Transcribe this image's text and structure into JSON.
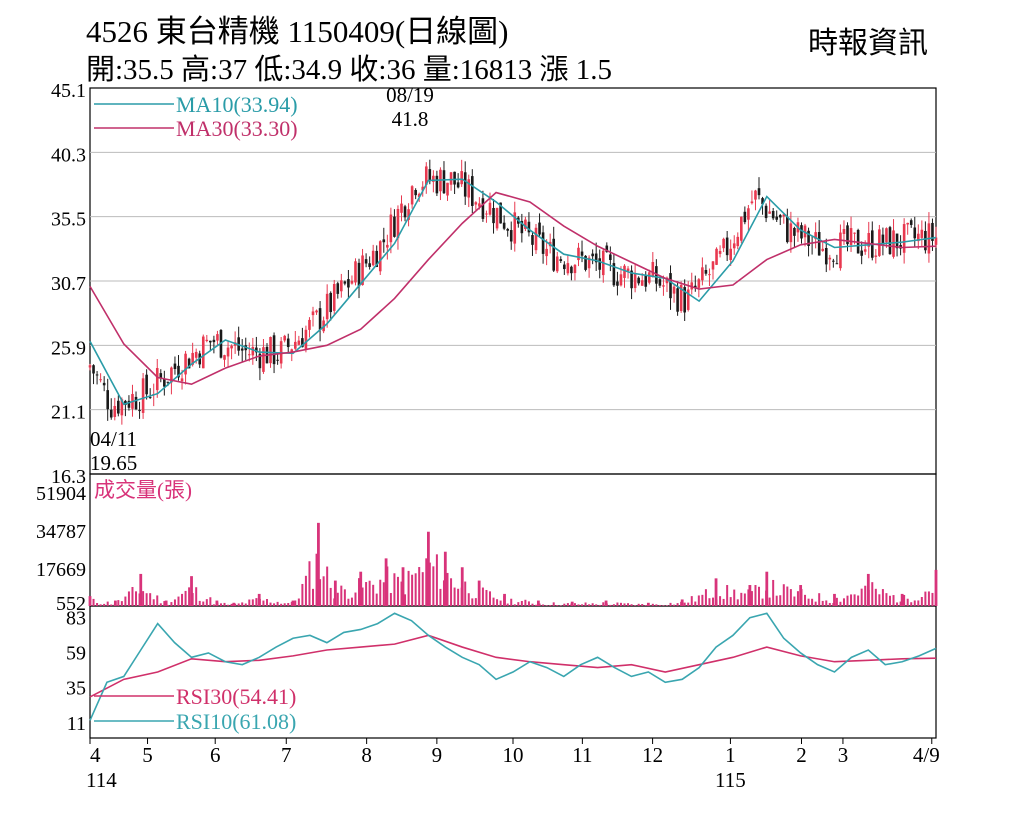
{
  "header": {
    "title": "4526  東台精機 1150409(日線圖)",
    "source": "時報資訊",
    "ohlc": "開:35.5 高:37 低:34.9 收:36 量:16813 漲 1.5"
  },
  "colors": {
    "up": "#e8384f",
    "down": "#1a1a1a",
    "ma10": "#2a9ca8",
    "ma30": "#c0306a",
    "volume": "#d8337a",
    "rsi30": "#d0306a",
    "rsi10": "#3aa6b0",
    "grid": "#bbbbbb"
  },
  "chart_data": [
    {
      "type": "line",
      "name": "price",
      "ylim": [
        16.3,
        45.1
      ],
      "yticks": [
        "45.1",
        "40.3",
        "35.5",
        "30.7",
        "25.9",
        "21.1",
        "16.3"
      ],
      "series": [
        {
          "name": "MA10(33.94)",
          "x": [
            0,
            0.04,
            0.08,
            0.12,
            0.16,
            0.2,
            0.24,
            0.28,
            0.32,
            0.36,
            0.4,
            0.44,
            0.48,
            0.52,
            0.56,
            0.6,
            0.64,
            0.68,
            0.72,
            0.76,
            0.8,
            0.84,
            0.88,
            0.92,
            0.96,
            1.0
          ],
          "values": [
            26.2,
            21.5,
            22.3,
            24.5,
            26.3,
            25.4,
            25.3,
            27.5,
            30.5,
            33.5,
            38.2,
            38.3,
            36.6,
            34.5,
            32.7,
            32.2,
            31.3,
            30.9,
            29.2,
            32.2,
            37.0,
            34.5,
            33.2,
            33.4,
            33.6,
            33.94
          ]
        },
        {
          "name": "MA30(33.30)",
          "x": [
            0,
            0.04,
            0.08,
            0.12,
            0.16,
            0.2,
            0.24,
            0.28,
            0.32,
            0.36,
            0.4,
            0.44,
            0.48,
            0.52,
            0.56,
            0.6,
            0.64,
            0.68,
            0.72,
            0.76,
            0.8,
            0.84,
            0.88,
            0.92,
            0.96,
            1.0
          ],
          "values": [
            30.3,
            26.0,
            23.5,
            23.0,
            24.2,
            25.1,
            25.4,
            25.9,
            27.1,
            29.4,
            32.3,
            35.0,
            37.3,
            36.6,
            34.8,
            33.3,
            32.1,
            30.9,
            30.1,
            30.4,
            32.3,
            33.4,
            33.8,
            33.5,
            33.2,
            33.3
          ]
        }
      ],
      "annotations": [
        {
          "date": "08/19",
          "value": "41.8"
        },
        {
          "date": "04/11",
          "value": "19.65"
        }
      ]
    },
    {
      "type": "bar",
      "name": "volume",
      "title": "成交量(張)",
      "ylim": [
        552,
        60000
      ],
      "yticks": [
        "51904",
        "34787",
        "17669",
        "552"
      ],
      "x": [
        0.0,
        0.03,
        0.06,
        0.09,
        0.12,
        0.15,
        0.17,
        0.2,
        0.24,
        0.27,
        0.29,
        0.32,
        0.35,
        0.37,
        0.4,
        0.42,
        0.44,
        0.46,
        0.49,
        0.53,
        0.57,
        0.61,
        0.66,
        0.7,
        0.74,
        0.78,
        0.8,
        0.84,
        0.88,
        0.92,
        0.96,
        1.0
      ],
      "values": [
        5000,
        3000,
        15000,
        3000,
        14000,
        3000,
        2000,
        6000,
        3000,
        38000,
        12000,
        16000,
        22000,
        18000,
        34000,
        25000,
        18000,
        12000,
        6000,
        3000,
        2500,
        3000,
        2000,
        3500,
        13000,
        10000,
        16000,
        10000,
        6000,
        15000,
        6000,
        16813
      ]
    },
    {
      "type": "line",
      "name": "rsi",
      "ylim": [
        0,
        90
      ],
      "yticks": [
        "83",
        "59",
        "35",
        "11"
      ],
      "series": [
        {
          "name": "RSI30(54.41)",
          "x": [
            0,
            0.04,
            0.08,
            0.12,
            0.16,
            0.2,
            0.24,
            0.28,
            0.32,
            0.36,
            0.4,
            0.44,
            0.48,
            0.52,
            0.56,
            0.6,
            0.64,
            0.68,
            0.72,
            0.76,
            0.8,
            0.84,
            0.88,
            0.92,
            0.96,
            1.0
          ],
          "values": [
            28,
            40,
            45,
            54,
            52,
            53,
            56,
            60,
            62,
            64,
            70,
            62,
            55,
            52,
            50,
            48,
            50,
            45,
            50,
            55,
            62,
            56,
            52,
            53,
            54,
            54.41
          ]
        },
        {
          "name": "RSI10(61.08)",
          "x": [
            0,
            0.02,
            0.04,
            0.06,
            0.08,
            0.1,
            0.12,
            0.14,
            0.16,
            0.18,
            0.2,
            0.22,
            0.24,
            0.26,
            0.28,
            0.3,
            0.32,
            0.34,
            0.36,
            0.38,
            0.4,
            0.42,
            0.44,
            0.46,
            0.48,
            0.5,
            0.52,
            0.54,
            0.56,
            0.58,
            0.6,
            0.62,
            0.64,
            0.66,
            0.68,
            0.7,
            0.72,
            0.74,
            0.76,
            0.78,
            0.8,
            0.82,
            0.84,
            0.86,
            0.88,
            0.9,
            0.92,
            0.94,
            0.96,
            0.98,
            1.0
          ],
          "values": [
            12,
            38,
            42,
            60,
            78,
            65,
            55,
            58,
            52,
            50,
            55,
            62,
            68,
            70,
            65,
            72,
            74,
            78,
            85,
            80,
            70,
            62,
            55,
            50,
            40,
            45,
            52,
            48,
            42,
            50,
            55,
            48,
            42,
            45,
            38,
            40,
            48,
            62,
            70,
            82,
            85,
            68,
            58,
            50,
            45,
            55,
            60,
            50,
            52,
            56,
            61.08
          ]
        }
      ]
    }
  ],
  "xaxis": {
    "ticks": [
      {
        "label": "4",
        "x": 0.0
      },
      {
        "label": "5",
        "x": 0.068
      },
      {
        "label": "6",
        "x": 0.148
      },
      {
        "label": "7",
        "x": 0.232
      },
      {
        "label": "8",
        "x": 0.327
      },
      {
        "label": "9",
        "x": 0.41
      },
      {
        "label": "10",
        "x": 0.5
      },
      {
        "label": "11",
        "x": 0.582
      },
      {
        "label": "12",
        "x": 0.665
      },
      {
        "label": "1",
        "x": 0.757
      },
      {
        "label": "2",
        "x": 0.841
      },
      {
        "label": "3",
        "x": 0.89
      },
      {
        "label": "4/9",
        "x": 0.995
      }
    ],
    "year_labels": [
      {
        "label": "114",
        "x": 0.0
      },
      {
        "label": "115",
        "x": 0.757
      }
    ]
  }
}
